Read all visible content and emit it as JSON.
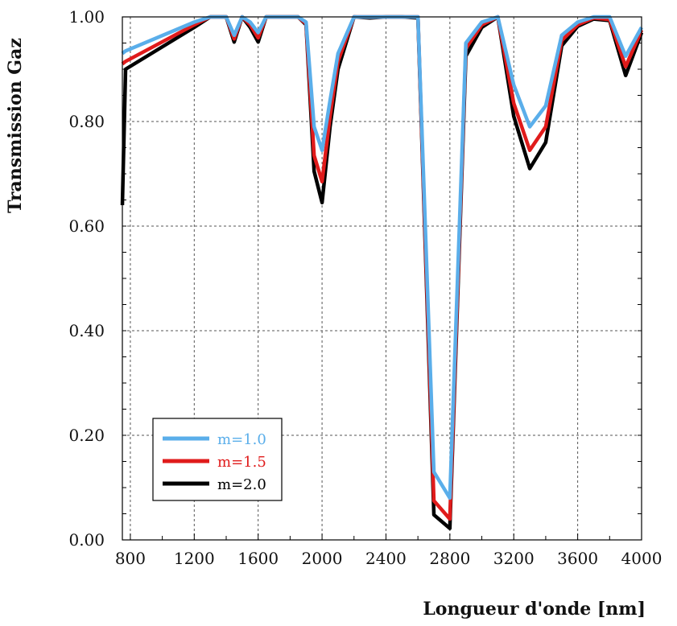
{
  "chart_data": {
    "type": "line",
    "title": "",
    "xlabel": "Longueur d'onde [nm]",
    "ylabel": "Transmission Gaz",
    "xlim": [
      750,
      4000
    ],
    "ylim": [
      0.0,
      1.0
    ],
    "xticks": [
      800,
      1200,
      1600,
      2000,
      2400,
      2800,
      3200,
      3600,
      4000
    ],
    "yticks": [
      0.0,
      0.2,
      0.4,
      0.6,
      0.8,
      1.0
    ],
    "xtick_labels": [
      "800",
      "1200",
      "1600",
      "2000",
      "2400",
      "2800",
      "3200",
      "3600",
      "4000"
    ],
    "ytick_labels": [
      "0.00",
      "0.20",
      "0.40",
      "0.60",
      "0.80",
      "1.00"
    ],
    "grid": true,
    "legend_position": "bottom-left",
    "x": [
      750,
      770,
      1200,
      1300,
      1400,
      1450,
      1500,
      1550,
      1600,
      1650,
      1700,
      1800,
      1850,
      1900,
      1950,
      2000,
      2050,
      2100,
      2200,
      2300,
      2400,
      2500,
      2600,
      2700,
      2800,
      2900,
      3000,
      3100,
      3200,
      3300,
      3400,
      3500,
      3600,
      3700,
      3800,
      3900,
      4000
    ],
    "series": [
      {
        "name": "m=1.0",
        "color": "#5aaeea",
        "values": [
          0.93,
          0.935,
          0.99,
          1.0,
          1.0,
          0.965,
          1.0,
          0.99,
          0.97,
          1.0,
          1.0,
          1.0,
          1.0,
          0.99,
          0.79,
          0.745,
          0.84,
          0.93,
          1.0,
          1.0,
          1.0,
          1.0,
          1.0,
          0.13,
          0.08,
          0.95,
          0.99,
          1.0,
          0.87,
          0.79,
          0.83,
          0.965,
          0.99,
          1.0,
          1.0,
          0.925,
          0.98
        ]
      },
      {
        "name": "m=1.5",
        "color": "#e01b1b",
        "values": [
          0.91,
          0.915,
          0.985,
          1.0,
          1.0,
          0.958,
          1.0,
          0.985,
          0.96,
          1.0,
          1.0,
          1.0,
          1.0,
          0.987,
          0.735,
          0.685,
          0.81,
          0.915,
          1.0,
          1.0,
          1.0,
          1.0,
          1.0,
          0.075,
          0.04,
          0.94,
          0.985,
          1.0,
          0.835,
          0.745,
          0.79,
          0.955,
          0.985,
          0.998,
          0.995,
          0.905,
          0.975
        ]
      },
      {
        "name": "m=2.0",
        "color": "#000000",
        "values": [
          0.64,
          0.9,
          0.98,
          1.0,
          1.0,
          0.952,
          1.0,
          0.98,
          0.952,
          1.0,
          1.0,
          1.0,
          1.0,
          0.985,
          0.705,
          0.645,
          0.79,
          0.9,
          1.0,
          0.998,
          1.0,
          1.0,
          0.998,
          0.048,
          0.022,
          0.925,
          0.98,
          1.0,
          0.81,
          0.71,
          0.76,
          0.945,
          0.982,
          0.996,
          0.993,
          0.888,
          0.97
        ]
      }
    ]
  }
}
